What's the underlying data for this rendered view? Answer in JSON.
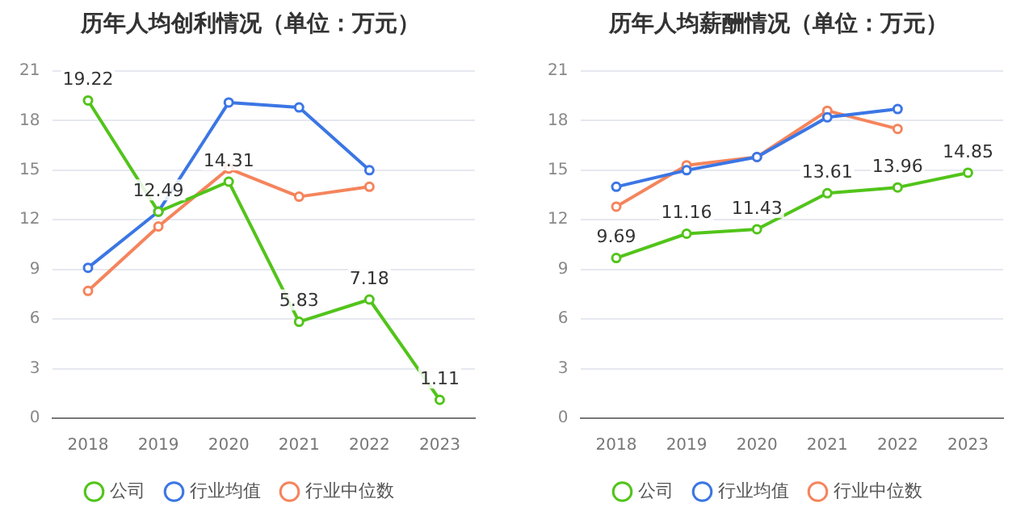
{
  "chart_data": [
    {
      "type": "line",
      "title": "历年人均创利情况（单位：万元）",
      "categories": [
        "2018",
        "2019",
        "2020",
        "2021",
        "2022",
        "2023"
      ],
      "ylim": [
        0,
        21
      ],
      "yticks": [
        0,
        3,
        6,
        9,
        12,
        15,
        18,
        21
      ],
      "grid": "y",
      "legend": "bottom",
      "marker": "circle",
      "series": [
        {
          "name": "公司",
          "color": "#52c41a",
          "values": [
            19.22,
            12.49,
            14.31,
            5.83,
            7.18,
            1.11
          ],
          "value_labels": [
            "19.22",
            "12.49",
            "14.31",
            "5.83",
            "7.18",
            "1.11"
          ]
        },
        {
          "name": "行业均值",
          "color": "#3b76e4",
          "values": [
            9.1,
            12.5,
            19.1,
            18.8,
            15.0,
            null
          ]
        },
        {
          "name": "行业中位数",
          "color": "#f5845c",
          "values": [
            7.7,
            11.6,
            15.1,
            13.4,
            14.0,
            null
          ]
        }
      ]
    },
    {
      "type": "line",
      "title": "历年人均薪酬情况（单位：万元）",
      "categories": [
        "2018",
        "2019",
        "2020",
        "2021",
        "2022",
        "2023"
      ],
      "ylim": [
        0,
        21
      ],
      "yticks": [
        0,
        3,
        6,
        9,
        12,
        15,
        18,
        21
      ],
      "grid": "y",
      "legend": "bottom",
      "marker": "circle",
      "series": [
        {
          "name": "公司",
          "color": "#52c41a",
          "values": [
            9.69,
            11.16,
            11.43,
            13.61,
            13.96,
            14.85
          ],
          "value_labels": [
            "9.69",
            "11.16",
            "11.43",
            "13.61",
            "13.96",
            "14.85"
          ]
        },
        {
          "name": "行业均值",
          "color": "#3b76e4",
          "values": [
            14.0,
            15.0,
            15.8,
            18.2,
            18.7,
            null
          ]
        },
        {
          "name": "行业中位数",
          "color": "#f5845c",
          "values": [
            12.8,
            15.3,
            15.8,
            18.6,
            17.5,
            null
          ]
        }
      ]
    }
  ]
}
